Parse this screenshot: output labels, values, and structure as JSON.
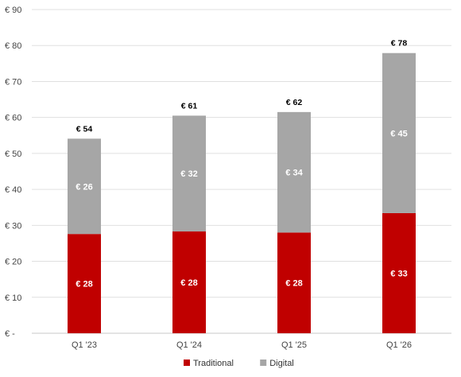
{
  "chart_data": {
    "type": "bar",
    "stacked": true,
    "categories": [
      "Q1 '23",
      "Q1 '24",
      "Q1 '25",
      "Q1 '26"
    ],
    "series": [
      {
        "name": "Traditional",
        "color": "#c00000",
        "values": [
          28,
          28,
          28,
          33
        ],
        "labels": [
          "€ 28",
          "€ 28",
          "€ 28",
          "€ 33"
        ]
      },
      {
        "name": "Digital",
        "color": "#a6a6a6",
        "values": [
          26,
          32,
          34,
          45
        ],
        "labels": [
          "€ 26",
          "€ 32",
          "€ 34",
          "€ 45"
        ]
      }
    ],
    "segment_bounds": {
      "traditional_top": [
        27.6,
        28.3,
        28.0,
        33.4
      ],
      "stack_top": [
        54.1,
        60.5,
        61.5,
        77.9
      ]
    },
    "totals": [
      "€ 54",
      "€ 61",
      "€ 62",
      "€ 78"
    ],
    "yticks": [
      "€ -",
      "€ 10",
      "€ 20",
      "€ 30",
      "€ 40",
      "€ 50",
      "€ 60",
      "€ 70",
      "€ 80",
      "€ 90"
    ],
    "ylim": [
      0,
      90
    ],
    "grid": true,
    "legend": "bottom-center",
    "title": "",
    "xlabel": "",
    "ylabel": ""
  }
}
